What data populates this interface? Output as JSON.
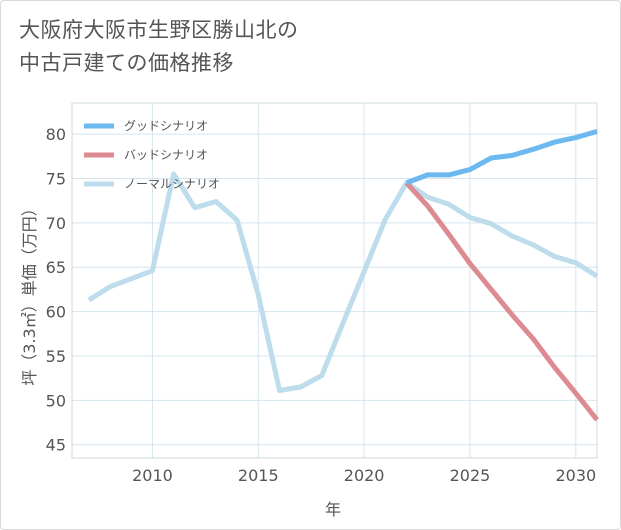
{
  "header": {
    "title_line1": "大阪府大阪市生野区勝山北の",
    "title_line2": "中古戸建ての価格推移"
  },
  "chart_data": {
    "type": "line",
    "title": "大阪府大阪市生野区勝山北の中古戸建ての価格推移",
    "xlabel": "年",
    "ylabel": "坪（3.3㎡）単価（万円）",
    "xlim": [
      2006.2,
      2031
    ],
    "ylim": [
      43.5,
      83.5
    ],
    "xticks": [
      2010,
      2015,
      2020,
      2025,
      2030
    ],
    "yticks": [
      45,
      50,
      55,
      60,
      65,
      70,
      75,
      80
    ],
    "grid": true,
    "legend_position": "top-left",
    "series": [
      {
        "name": "グッドシナリオ",
        "color": "#6bb9ef",
        "x": [
          2022,
          2023,
          2024,
          2025,
          2026,
          2027,
          2028,
          2029,
          2030,
          2031
        ],
        "y": [
          74.5,
          75.4,
          75.4,
          76.0,
          77.3,
          77.6,
          78.3,
          79.1,
          79.6,
          80.3
        ]
      },
      {
        "name": "バッドシナリオ",
        "color": "#dd8a92",
        "x": [
          2022,
          2023,
          2024,
          2025,
          2026,
          2027,
          2028,
          2029,
          2030,
          2031
        ],
        "y": [
          74.5,
          71.9,
          68.7,
          65.4,
          62.5,
          59.6,
          56.9,
          53.7,
          50.8,
          47.8
        ]
      },
      {
        "name": "ノーマルシナリオ",
        "color": "#bddcec",
        "x": [
          2007,
          2008,
          2009,
          2010,
          2011,
          2012,
          2013,
          2014,
          2015,
          2016,
          2017,
          2018,
          2019,
          2020,
          2021,
          2022,
          2023,
          2024,
          2025,
          2026,
          2027,
          2028,
          2029,
          2030,
          2031
        ],
        "y": [
          61.3,
          62.8,
          63.7,
          64.6,
          75.5,
          71.7,
          72.4,
          70.3,
          61.9,
          51.1,
          51.5,
          52.8,
          58.7,
          64.5,
          70.4,
          74.5,
          72.9,
          72.1,
          70.6,
          69.9,
          68.5,
          67.5,
          66.2,
          65.5,
          64.0
        ]
      }
    ]
  }
}
